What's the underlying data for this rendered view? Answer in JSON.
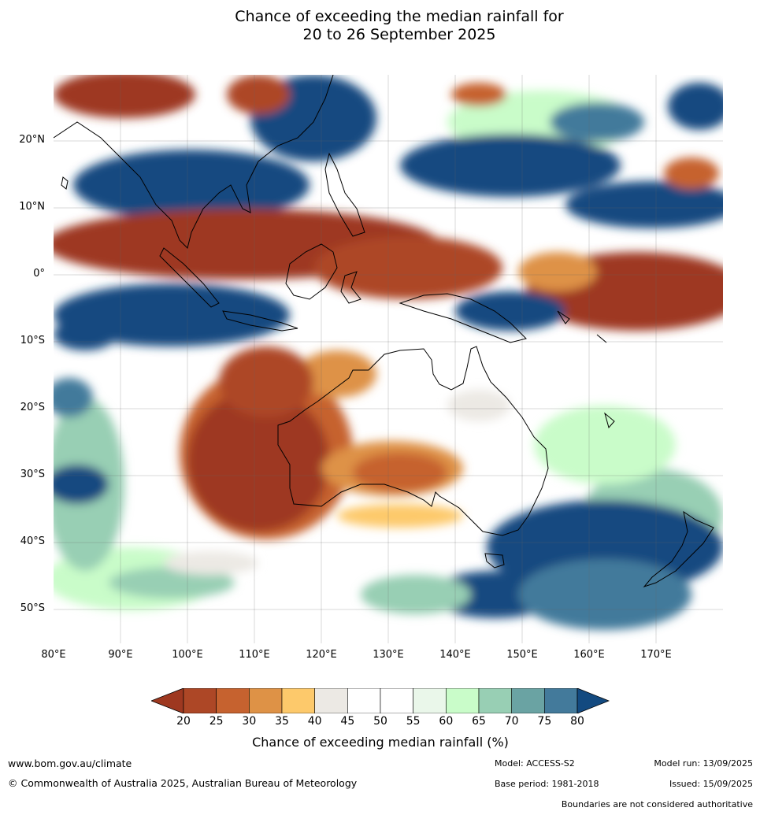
{
  "title_line1": "Chance of exceeding the median rainfall for",
  "title_line2": "20 to 26 September 2025",
  "map": {
    "lon_range": [
      80,
      180
    ],
    "lat_range": [
      -55,
      30
    ],
    "lat_labels": [
      "20°N",
      "10°N",
      "0°",
      "10°S",
      "20°S",
      "30°S",
      "40°S",
      "50°S"
    ],
    "lon_labels": [
      "80°E",
      "90°E",
      "100°E",
      "110°E",
      "120°E",
      "130°E",
      "140°E",
      "150°E",
      "160°E",
      "170°E"
    ],
    "regions": [
      {
        "name": "Australia interior",
        "value_pct": "45-55"
      },
      {
        "name": "Western Australia / Indian Ocean west of WA",
        "value_pct": "<20-35"
      },
      {
        "name": "Southern Ocean south of Australia",
        "value_pct": ">80"
      },
      {
        "name": "Equatorial band 0-10°N",
        "value_pct": "<20"
      },
      {
        "name": "Maritime Continent south of equator",
        "value_pct": ">80"
      }
    ]
  },
  "colorbar": {
    "ticks": [
      "20",
      "25",
      "30",
      "35",
      "40",
      "45",
      "50",
      "55",
      "60",
      "65",
      "70",
      "75",
      "80"
    ],
    "colors": [
      "#9e3820",
      "#ad4726",
      "#c6622f",
      "#de9246",
      "#fdc96b",
      "#ece9e4",
      "#ffffff",
      "#ffffff",
      "#eaf7ea",
      "#c9fcc9",
      "#98cfb4",
      "#6aa3a3",
      "#437a9b",
      "#134a80"
    ],
    "label": "Chance of exceeding median rainfall (%)"
  },
  "footer": {
    "website": "www.bom.gov.au/climate",
    "copyright": "© Commonwealth of Australia 2025, Australian Bureau of Meteorology",
    "model": "Model: ACCESS-S2",
    "base_period": "Base period: 1981-2018",
    "model_run": "Model run: 13/09/2025",
    "issued": "Issued: 15/09/2025",
    "disclaimer": "Boundaries are not considered authoritative"
  }
}
